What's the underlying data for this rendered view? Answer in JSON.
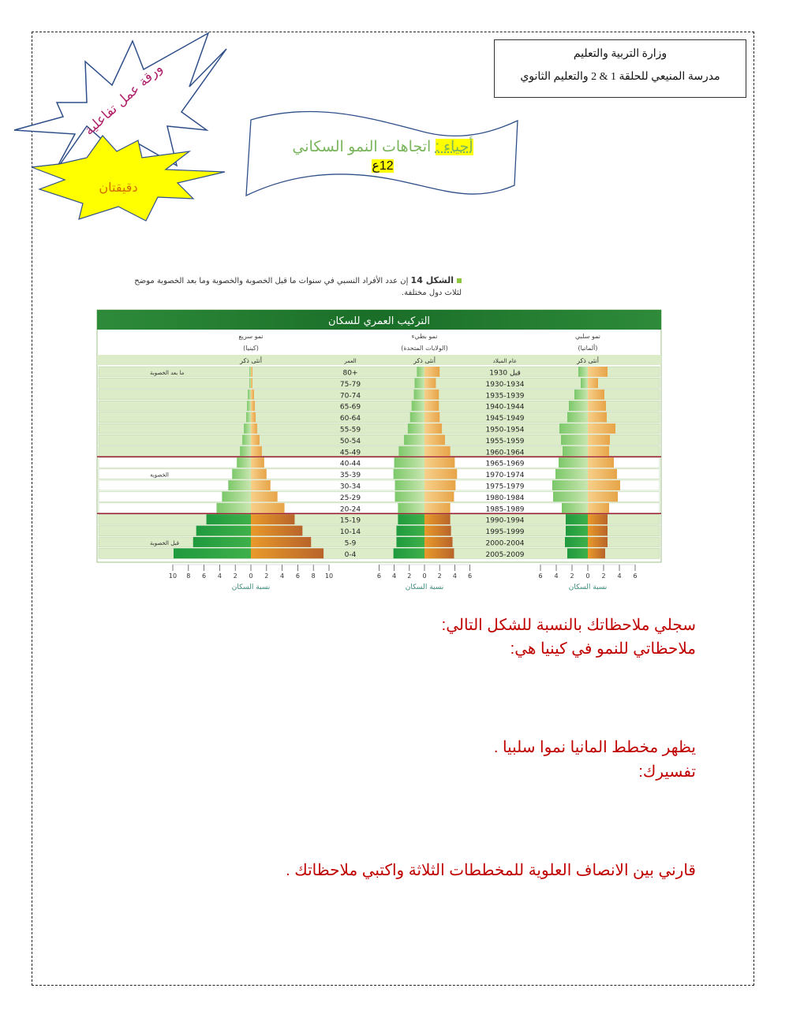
{
  "header": {
    "ministry": "وزارة التربية والتعليم",
    "school": "مدرسة المنيعي للحلقة 1 & 2 والتعليم الثانوي",
    "subject": "أحياء :",
    "topic": "اتجاهات النمو السكاني",
    "grade": "12ع",
    "worksheet_badge": "ورقة عمل تفاعلية",
    "time_badge": "دقيقتان"
  },
  "colors": {
    "male": "#3aa845",
    "female": "#f0a030",
    "title_bar": "#1f7a2c",
    "band": "#dcebc8",
    "divider": "#a0203a",
    "question": "#c00000"
  },
  "caption": {
    "label": "الشكل 14",
    "text": "إن عدد الأفراد النسبي في سنوات ما قبل الخصوبة والخصوبة وما بعد الخصوبة موضح لثلاث دول مختلفة."
  },
  "chart_header": {
    "title": "التركيب العمري للسكان",
    "sex_header": "أنثى ذكر",
    "age_header": "العمر",
    "birth_header": "عام الميلاد",
    "stage_labels": [
      "ما بعد الخصوبة",
      "الخصوبة",
      "قبل الخصوبة"
    ],
    "ages": [
      "80+",
      "75-79",
      "70-74",
      "65-69",
      "60-64",
      "55-59",
      "50-54",
      "45-49",
      "40-44",
      "35-39",
      "30-34",
      "25-29",
      "20-24",
      "15-19",
      "10-14",
      "5-9",
      "0-4"
    ],
    "birth_years": [
      "قبل 1930",
      "1930-1934",
      "1935-1939",
      "1940-1944",
      "1945-1949",
      "1950-1954",
      "1955-1959",
      "1960-1964",
      "1965-1969",
      "1970-1974",
      "1975-1979",
      "1980-1984",
      "1985-1989",
      "1990-1994",
      "1995-1999",
      "2000-2004",
      "2005-2009"
    ]
  },
  "chart_data": [
    {
      "type": "bar",
      "orientation": "horizontal-pyramid",
      "title": "نمو سريع",
      "subtitle": "(كينيا)",
      "xlabel": "نسبة السكان",
      "xlim": [
        -10,
        10
      ],
      "ticks": [
        10,
        8,
        6,
        4,
        2,
        0,
        2,
        4,
        6,
        8,
        10
      ],
      "series": [
        {
          "name": "ذكر",
          "values": [
            0.2,
            0.2,
            0.4,
            0.5,
            0.6,
            0.9,
            1.1,
            1.4,
            1.8,
            2.4,
            2.9,
            3.7,
            4.4,
            5.7,
            7.0,
            7.4,
            9.9
          ]
        },
        {
          "name": "أنثى",
          "values": [
            0.2,
            0.2,
            0.4,
            0.5,
            0.6,
            0.8,
            1.1,
            1.4,
            1.7,
            2.0,
            2.5,
            3.4,
            4.3,
            5.6,
            6.6,
            7.7,
            9.3
          ]
        }
      ]
    },
    {
      "type": "bar",
      "orientation": "horizontal-pyramid",
      "title": "نمو بطيء",
      "subtitle": "(الولايات المتحدة)",
      "xlabel": "نسبة السكان",
      "xlim": [
        -6,
        6
      ],
      "ticks": [
        6,
        4,
        2,
        0,
        2,
        4,
        6
      ],
      "series": [
        {
          "name": "ذكر",
          "values": [
            1.0,
            1.3,
            1.4,
            1.7,
            1.9,
            2.2,
            2.7,
            3.4,
            4.0,
            4.1,
            3.9,
            3.9,
            3.5,
            3.5,
            3.7,
            3.7,
            4.1
          ]
        },
        {
          "name": "أنثى",
          "values": [
            2.0,
            1.5,
            1.9,
            1.9,
            2.0,
            2.3,
            2.7,
            3.4,
            4.0,
            4.3,
            4.1,
            3.9,
            3.4,
            3.4,
            3.5,
            3.7,
            3.9
          ]
        }
      ]
    },
    {
      "type": "bar",
      "orientation": "horizontal-pyramid",
      "title": "نمو سلبي",
      "subtitle": "(ألمانيا)",
      "xlabel": "نسبة السكان",
      "xlim": [
        -6,
        6
      ],
      "ticks": [
        6,
        4,
        2,
        0,
        2,
        4,
        6
      ],
      "series": [
        {
          "name": "ذكر",
          "values": [
            1.2,
            0.9,
            1.7,
            2.4,
            2.6,
            3.6,
            3.4,
            3.2,
            3.7,
            4.1,
            4.5,
            4.4,
            3.3,
            2.8,
            2.8,
            2.9,
            2.6
          ]
        },
        {
          "name": "أنثى",
          "values": [
            2.5,
            1.3,
            2.1,
            2.3,
            2.4,
            3.5,
            2.8,
            2.7,
            3.3,
            3.7,
            4.1,
            3.8,
            2.7,
            2.5,
            2.5,
            2.5,
            2.2
          ]
        }
      ]
    }
  ],
  "questions": [
    "سجلي ملاحظاتك بالنسبة  للشكل التالي:",
    "ملاحظاتي للنمو في كينيا هي:",
    "يظهر مخطط المانيا نموا سلبيا .",
    "تفسيرك:",
    "قارني بين  الانصاف العلوية للمخططات الثلاثة واكتبي ملاحظاتك ."
  ]
}
